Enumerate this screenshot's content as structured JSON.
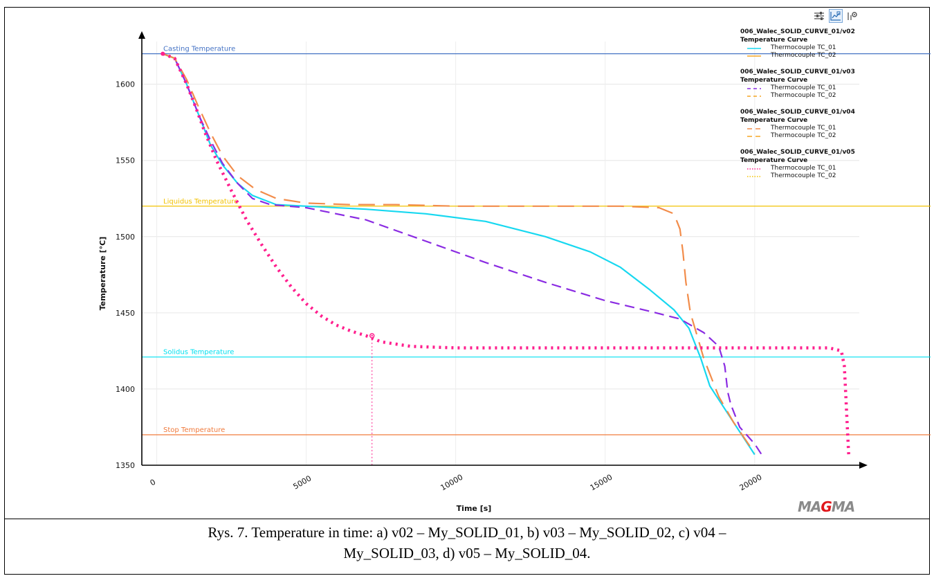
{
  "toolbar": {
    "icons": [
      "sliders-icon",
      "chart-view-icon",
      "settings-icon"
    ],
    "active": "chart-view-icon"
  },
  "logo": {
    "text": "MAGMA",
    "prefix": "MA",
    "highlight": "G",
    "suffix": "MA",
    "highlight_color": "#e0161b"
  },
  "caption": {
    "line1": "Rys. 7. Temperature in time: a) v02 – My_SOLID_01, b) v03 – My_SOLID_02, c) v04 –",
    "line2": "My_SOLID_03, d) v05 – My_SOLID_04."
  },
  "chart_data": {
    "type": "line",
    "xlabel": "Time [s]",
    "ylabel": "Temperature [°C]",
    "xlim": [
      -500,
      23500
    ],
    "ylim": [
      1350,
      1628
    ],
    "xticks": [
      0,
      5000,
      10000,
      15000,
      20000
    ],
    "yticks": [
      1350,
      1400,
      1450,
      1500,
      1550,
      1600
    ],
    "ytick_labels": [
      "1350",
      "1400",
      "1450",
      "1500",
      "1550",
      "1600"
    ],
    "xtick_labels": [
      "0",
      "5000",
      "10000",
      "15000",
      "20000"
    ],
    "grid": true,
    "legend_position": "right",
    "reference_lines": [
      {
        "label": "Casting Temperature",
        "y": 1620,
        "color": "#4472c4"
      },
      {
        "label": "Liquidus Temperature",
        "y": 1520,
        "color": "#f2c200"
      },
      {
        "label": "Solidus Temperature",
        "y": 1421,
        "color": "#00e0f0"
      },
      {
        "label": "Stop Temperature",
        "y": 1370,
        "color": "#f07a3c"
      }
    ],
    "marker": {
      "x": 7200,
      "y": 1435,
      "color": "#ff1f8e"
    },
    "legend_groups": [
      {
        "title": "006_Walec_SOLID_CURVE_01/v02",
        "subtitle": "Temperature Curve",
        "items": [
          {
            "label": "Thermocouple TC_01",
            "color": "#17d8f0",
            "style": "solid"
          },
          {
            "label": "Thermocouple TC_02",
            "color": "#f5a623",
            "style": "solid"
          }
        ]
      },
      {
        "title": "006_Walec_SOLID_CURVE_01/v03",
        "subtitle": "Temperature Curve",
        "items": [
          {
            "label": "Thermocouple TC_01",
            "color": "#8a2be2",
            "style": "dashed"
          },
          {
            "label": "Thermocouple TC_02",
            "color": "#f5a623",
            "style": "dashed"
          }
        ]
      },
      {
        "title": "006_Walec_SOLID_CURVE_01/v04",
        "subtitle": "Temperature Curve",
        "items": [
          {
            "label": "Thermocouple TC_01",
            "color": "#f28c4a",
            "style": "longdash"
          },
          {
            "label": "Thermocouple TC_02",
            "color": "#f5a623",
            "style": "longdash"
          }
        ]
      },
      {
        "title": "006_Walec_SOLID_CURVE_01/v05",
        "subtitle": "Temperature Curve",
        "items": [
          {
            "label": "Thermocouple TC_01",
            "color": "#ff1f8e",
            "style": "dotted"
          },
          {
            "label": "Thermocouple TC_02",
            "color": "#f5c400",
            "style": "dotted"
          }
        ]
      }
    ],
    "series": [
      {
        "group": "006_Walec_SOLID_CURVE_01/v02",
        "name": "Thermocouple TC_01",
        "color": "#17d8f0",
        "style": "solid",
        "x": [
          200,
          600,
          1000,
          1400,
          1800,
          2200,
          2700,
          3200,
          4000,
          5000,
          7000,
          9000,
          11000,
          13000,
          14500,
          15500,
          16500,
          17300,
          17800,
          18200,
          18500,
          18800,
          19300,
          20000
        ],
        "y": [
          1620,
          1617,
          1600,
          1580,
          1560,
          1547,
          1535,
          1527,
          1521,
          1520,
          1518,
          1515,
          1510,
          1500,
          1490,
          1480,
          1465,
          1452,
          1440,
          1420,
          1402,
          1393,
          1378,
          1357
        ]
      },
      {
        "group": "006_Walec_SOLID_CURVE_01/v03",
        "name": "Thermocouple TC_01",
        "color": "#8a2be2",
        "style": "dashed",
        "x": [
          200,
          600,
          1000,
          1400,
          1800,
          2200,
          2700,
          3200,
          3800,
          5000,
          7000,
          9000,
          11000,
          13000,
          15000,
          16500,
          17500,
          18300,
          18800,
          19000,
          19100,
          19200,
          19500,
          20000,
          20300
        ],
        "y": [
          1620,
          1617,
          1600,
          1580,
          1563,
          1548,
          1535,
          1525,
          1521,
          1519,
          1511,
          1497,
          1483,
          1470,
          1458,
          1451,
          1446,
          1437,
          1428,
          1415,
          1398,
          1390,
          1375,
          1364,
          1355
        ]
      },
      {
        "group": "006_Walec_SOLID_CURVE_01/v04",
        "name": "Thermocouple TC_01",
        "color": "#f28c4a",
        "style": "longdash",
        "x": [
          200,
          600,
          1000,
          1400,
          1800,
          2200,
          2700,
          3300,
          4000,
          5000,
          6500,
          8000,
          10000,
          13000,
          15500,
          16800,
          17300,
          17500,
          17600,
          17700,
          17850,
          18000,
          18300,
          18800,
          19300,
          20000
        ],
        "y": [
          1620,
          1617,
          1603,
          1585,
          1568,
          1553,
          1540,
          1531,
          1525,
          1522,
          1521,
          1521,
          1520,
          1520,
          1520,
          1519,
          1515,
          1505,
          1490,
          1470,
          1450,
          1440,
          1420,
          1395,
          1378,
          1358
        ]
      },
      {
        "group": "006_Walec_SOLID_CURVE_01/v05",
        "name": "Thermocouple TC_01",
        "color": "#ff1f8e",
        "style": "dotted",
        "x": [
          200,
          600,
          1000,
          1300,
          1600,
          2000,
          2500,
          3000,
          3500,
          4000,
          4500,
          5000,
          5500,
          6000,
          6500,
          7000,
          7500,
          8500,
          10000,
          13000,
          16000,
          19000,
          21000,
          22500,
          22900,
          23000,
          23050,
          23100,
          23150
        ],
        "y": [
          1620,
          1617,
          1600,
          1585,
          1569,
          1550,
          1530,
          1511,
          1495,
          1480,
          1467,
          1456,
          1448,
          1442,
          1438,
          1435,
          1431,
          1428,
          1427,
          1427,
          1427,
          1427,
          1427,
          1427,
          1425,
          1415,
          1395,
          1375,
          1355
        ]
      }
    ]
  }
}
